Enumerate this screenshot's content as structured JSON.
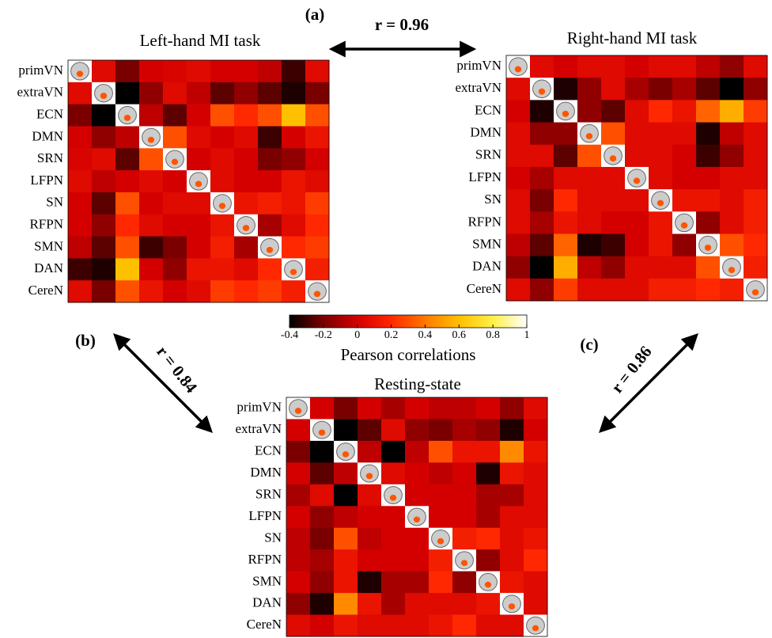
{
  "chart_data": [
    {
      "type": "heatmap",
      "title": "Left-hand MI task",
      "categories": [
        "primVN",
        "extraVN",
        "ECN",
        "DMN",
        "SRN",
        "LFPN",
        "SN",
        "RFPN",
        "SMN",
        "DAN",
        "CereN"
      ],
      "values": [
        [
          null,
          0.05,
          -0.2,
          0,
          0.02,
          0.05,
          0,
          0,
          -0.05,
          -0.3,
          0.05
        ],
        [
          0.05,
          null,
          -0.4,
          -0.15,
          0.05,
          -0.05,
          -0.25,
          -0.15,
          -0.25,
          -0.35,
          -0.2
        ],
        [
          -0.2,
          -0.4,
          null,
          -0.05,
          -0.25,
          0,
          0.3,
          0.2,
          0.3,
          0.6,
          0.3
        ],
        [
          0,
          -0.15,
          -0.05,
          null,
          0.3,
          0.05,
          0,
          0.05,
          -0.3,
          0,
          0.1
        ],
        [
          0.02,
          0.05,
          -0.25,
          0.3,
          null,
          0,
          0.05,
          0,
          -0.2,
          -0.15,
          0
        ],
        [
          0.05,
          -0.05,
          0,
          0.05,
          0,
          null,
          0.05,
          0,
          0,
          0.1,
          0.05
        ],
        [
          0,
          -0.25,
          0.3,
          0,
          0.05,
          0.05,
          null,
          0.1,
          0.15,
          0.1,
          0.25
        ],
        [
          0,
          -0.15,
          0.2,
          0.05,
          0,
          0,
          0.1,
          null,
          -0.1,
          0.05,
          0.2
        ],
        [
          -0.05,
          -0.25,
          0.3,
          -0.3,
          -0.2,
          0,
          0.15,
          -0.1,
          null,
          0.2,
          0.25
        ],
        [
          -0.3,
          -0.35,
          0.6,
          0,
          -0.15,
          0.1,
          0.1,
          0.05,
          0.2,
          null,
          0.15
        ],
        [
          0.05,
          -0.2,
          0.3,
          0.1,
          0,
          0.05,
          0.25,
          0.2,
          0.25,
          0.15,
          null
        ]
      ]
    },
    {
      "type": "heatmap",
      "title": "Right-hand MI task",
      "categories": [
        "primVN",
        "extraVN",
        "ECN",
        "DMN",
        "SRN",
        "LFPN",
        "SN",
        "RFPN",
        "SMN",
        "DAN",
        "CereN"
      ],
      "values": [
        [
          null,
          0.05,
          0,
          0.05,
          0.05,
          0,
          0.05,
          0.05,
          -0.05,
          -0.15,
          0.05
        ],
        [
          0.05,
          null,
          -0.35,
          -0.15,
          0.05,
          -0.1,
          -0.2,
          -0.1,
          -0.25,
          -0.4,
          -0.15
        ],
        [
          0,
          -0.35,
          null,
          -0.15,
          -0.25,
          0.05,
          0.2,
          0.1,
          0.35,
          0.55,
          0.25
        ],
        [
          0.05,
          -0.15,
          -0.15,
          null,
          0.3,
          0.05,
          0.05,
          0.05,
          -0.35,
          -0.05,
          0.05
        ],
        [
          0.05,
          0.05,
          -0.25,
          0.3,
          null,
          0.05,
          0.05,
          0,
          -0.3,
          -0.15,
          0.05
        ],
        [
          0,
          -0.1,
          0.05,
          0.05,
          0.05,
          null,
          0.05,
          0,
          0,
          0.05,
          0.05
        ],
        [
          0.05,
          -0.2,
          0.2,
          0.05,
          0.05,
          0.05,
          null,
          0.1,
          0.1,
          0.05,
          0.15
        ],
        [
          0.05,
          -0.1,
          0.1,
          0.05,
          0,
          0,
          0.1,
          null,
          -0.15,
          0.05,
          0.15
        ],
        [
          -0.05,
          -0.25,
          0.35,
          -0.35,
          -0.3,
          0,
          0.1,
          -0.15,
          null,
          0.3,
          0.2
        ],
        [
          -0.15,
          -0.4,
          0.55,
          -0.05,
          -0.15,
          0.05,
          0.05,
          0.05,
          0.3,
          null,
          0.15
        ],
        [
          0.05,
          -0.15,
          0.25,
          0.05,
          0.05,
          0.05,
          0.15,
          0.15,
          0.2,
          0.15,
          null
        ]
      ]
    },
    {
      "type": "heatmap",
      "title": "Resting-state",
      "categories": [
        "primVN",
        "extraVN",
        "ECN",
        "DMN",
        "SRN",
        "LFPN",
        "SN",
        "RFPN",
        "SMN",
        "DAN",
        "CereN"
      ],
      "values": [
        [
          null,
          0,
          -0.2,
          0,
          -0.1,
          0,
          -0.05,
          -0.05,
          0,
          -0.15,
          0.05
        ],
        [
          0,
          null,
          -0.4,
          -0.25,
          0.05,
          -0.15,
          -0.2,
          -0.1,
          -0.15,
          -0.35,
          0
        ],
        [
          -0.2,
          -0.4,
          null,
          -0.05,
          -0.4,
          -0.05,
          0.3,
          0.1,
          0.1,
          0.45,
          0.1
        ],
        [
          0,
          -0.25,
          -0.05,
          null,
          0.05,
          0,
          -0.05,
          0,
          -0.35,
          0.1,
          0.05
        ],
        [
          -0.1,
          0.05,
          -0.4,
          0.05,
          null,
          0,
          0,
          0,
          -0.1,
          -0.1,
          0.05
        ],
        [
          0,
          -0.15,
          -0.05,
          0,
          0,
          null,
          0,
          0,
          -0.1,
          0.05,
          0.05
        ],
        [
          -0.05,
          -0.2,
          0.3,
          -0.05,
          0,
          0,
          null,
          0.15,
          0.2,
          0.05,
          0.1
        ],
        [
          -0.05,
          -0.1,
          0.1,
          0,
          0,
          0,
          0.15,
          null,
          -0.15,
          0.05,
          0.2
        ],
        [
          0,
          -0.15,
          0.1,
          -0.35,
          -0.1,
          -0.1,
          0.2,
          -0.15,
          null,
          0.1,
          0.05
        ],
        [
          -0.15,
          -0.35,
          0.45,
          0.1,
          -0.1,
          0.05,
          0.05,
          0.05,
          0.1,
          null,
          0.05
        ],
        [
          0.05,
          0,
          0.1,
          0.05,
          0.05,
          0.05,
          0.1,
          0.2,
          0.05,
          0.05,
          null
        ]
      ]
    }
  ],
  "colorbar": {
    "label": "Pearson correlations",
    "lim": [
      -0.4,
      1
    ],
    "ticks": [
      -0.4,
      -0.2,
      0,
      0.2,
      0.4,
      0.6,
      0.8,
      1
    ]
  },
  "annotations": {
    "panel_labels": [
      "(a)",
      "(b)",
      "(c)"
    ],
    "correlations": [
      "r = 0.96",
      "r = 0.84",
      "r = 0.86"
    ]
  }
}
